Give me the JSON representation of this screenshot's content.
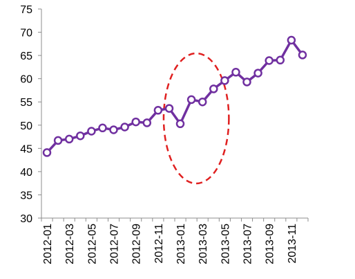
{
  "chart_data": {
    "type": "line",
    "title": "",
    "xlabel": "",
    "ylabel": "",
    "ylim": [
      30,
      75
    ],
    "yticks": [
      30,
      35,
      40,
      45,
      50,
      55,
      60,
      65,
      70,
      75
    ],
    "x": [
      "2012-01",
      "2012-02",
      "2012-03",
      "2012-04",
      "2012-05",
      "2012-06",
      "2012-07",
      "2012-08",
      "2012-09",
      "2012-10",
      "2012-11",
      "2012-12",
      "2013-01",
      "2013-02",
      "2013-03",
      "2013-04",
      "2013-05",
      "2013-06",
      "2013-07",
      "2013-08",
      "2013-09",
      "2013-10",
      "2013-11",
      "2013-12"
    ],
    "xtick_labels": [
      "2012-01",
      "2012-03",
      "2012-05",
      "2012-07",
      "2012-09",
      "2012-11",
      "2013-01",
      "2013-03",
      "2013-05",
      "2013-07",
      "2013-09",
      "2013-11"
    ],
    "series": [
      {
        "values": [
          44.1,
          46.7,
          47.0,
          47.7,
          48.7,
          49.4,
          49.0,
          49.6,
          50.7,
          50.5,
          53.2,
          53.6,
          50.3,
          55.5,
          55.0,
          57.8,
          59.6,
          61.4,
          59.3,
          61.2,
          63.9,
          64.0,
          68.3,
          65.1
        ],
        "color": "#7030a0"
      }
    ],
    "grid": false,
    "legend": "none",
    "annotation": {
      "shape": "dashed-ellipse",
      "color": "#e02020",
      "highlights": "2012-12 to 2013-05"
    }
  }
}
